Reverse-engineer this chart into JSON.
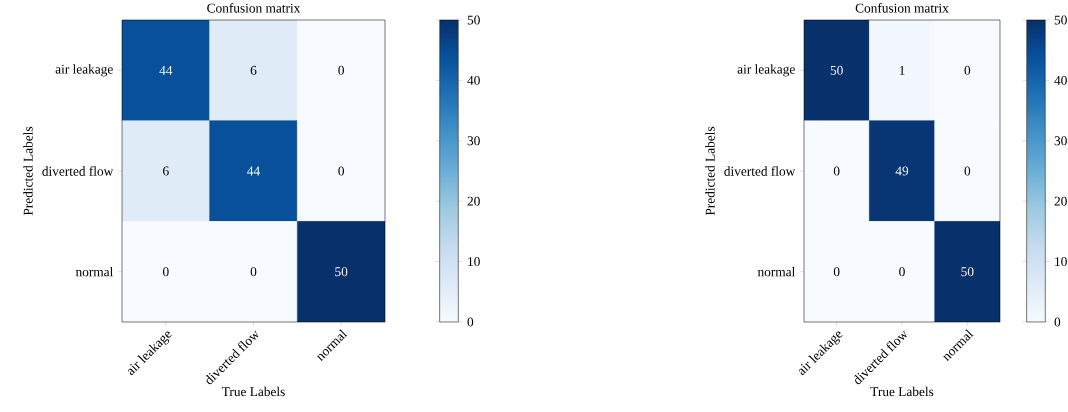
{
  "chart_data": [
    {
      "type": "heatmap",
      "title": "Confusion matrix",
      "xlabel": "True Labels",
      "ylabel": "Predicted Labels",
      "categories": [
        "air leakage",
        "diverted flow",
        "normal"
      ],
      "y_categories": [
        "air leakage",
        "diverted flow",
        "normal"
      ],
      "cells": [
        [
          44,
          6,
          0
        ],
        [
          6,
          44,
          0
        ],
        [
          0,
          0,
          50
        ]
      ],
      "clim": [
        0,
        50
      ],
      "cticks": [
        0,
        10,
        20,
        30,
        40,
        50
      ],
      "data_labels": true
    },
    {
      "type": "heatmap",
      "title": "Confusion matrix",
      "xlabel": "True Labels",
      "ylabel": "Predicted Labels",
      "categories": [
        "air leakage",
        "diverted flow",
        "normal"
      ],
      "y_categories": [
        "air leakage",
        "diverted flow",
        "normal"
      ],
      "cells": [
        [
          50,
          1,
          0
        ],
        [
          0,
          49,
          0
        ],
        [
          0,
          0,
          50
        ]
      ],
      "clim": [
        0,
        50
      ],
      "cticks": [
        0,
        10,
        20,
        30,
        40,
        50
      ],
      "data_labels": true
    }
  ]
}
